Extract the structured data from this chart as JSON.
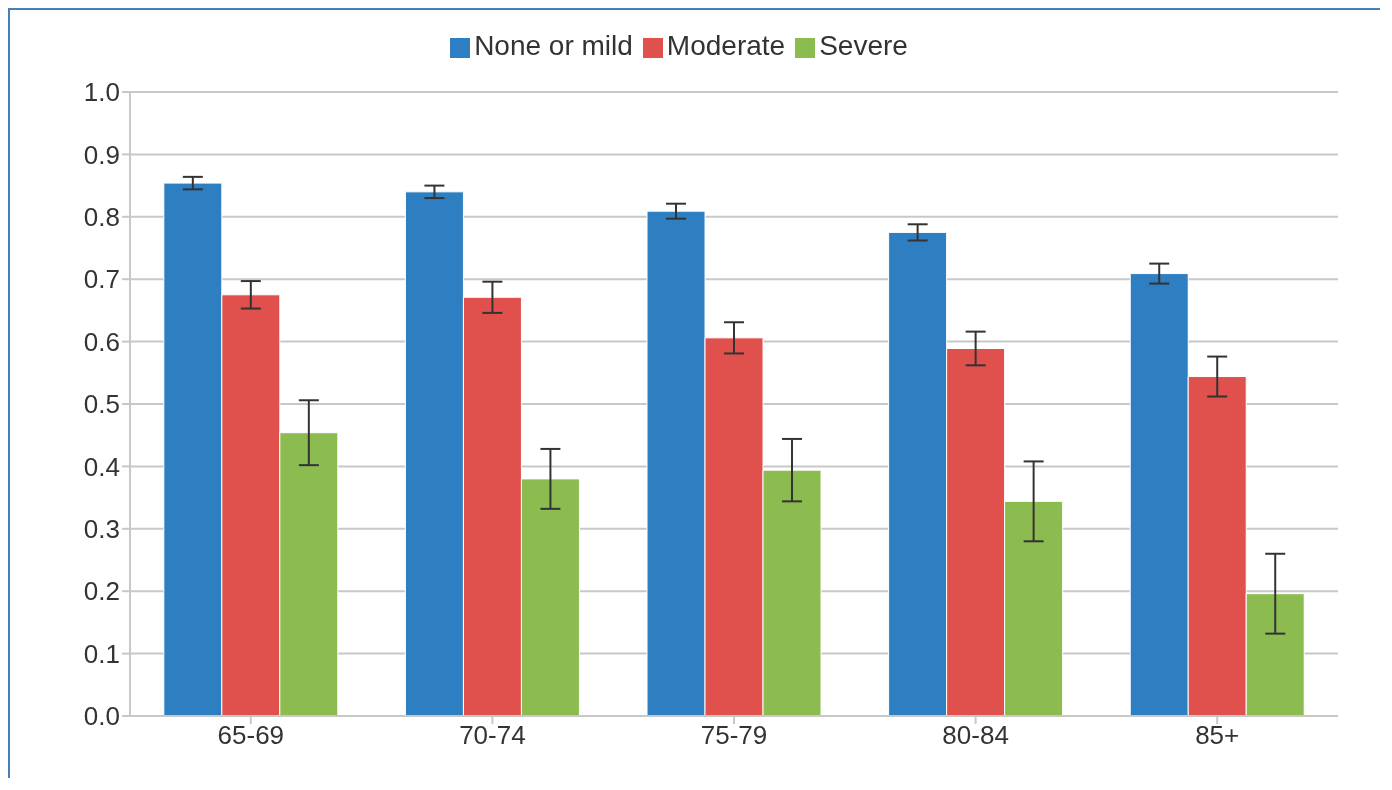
{
  "chart_data": {
    "type": "bar",
    "categories": [
      "65-69",
      "70-74",
      "75-79",
      "80-84",
      "85+"
    ],
    "series": [
      {
        "name": "None or mild",
        "color": "#2e7fc1",
        "values": [
          0.854,
          0.84,
          0.809,
          0.775,
          0.709
        ],
        "errors": [
          0.01,
          0.01,
          0.012,
          0.013,
          0.016
        ]
      },
      {
        "name": "Moderate",
        "color": "#e0504d",
        "values": [
          0.675,
          0.671,
          0.606,
          0.589,
          0.544
        ],
        "errors": [
          0.022,
          0.025,
          0.025,
          0.027,
          0.032
        ]
      },
      {
        "name": "Severe",
        "color": "#8cbb4f",
        "values": [
          0.454,
          0.38,
          0.394,
          0.344,
          0.196
        ],
        "errors": [
          0.052,
          0.048,
          0.05,
          0.064,
          0.064
        ]
      }
    ],
    "ylim": [
      0,
      1
    ],
    "yticks": [
      {
        "value": 0,
        "label": "0.0"
      },
      {
        "value": 0.1,
        "label": "0.1"
      },
      {
        "value": 0.2,
        "label": "0.2"
      },
      {
        "value": 0.3,
        "label": "0.3"
      },
      {
        "value": 0.4,
        "label": "0.4"
      },
      {
        "value": 0.5,
        "label": "0.5"
      },
      {
        "value": 0.6,
        "label": "0.6"
      },
      {
        "value": 0.7,
        "label": "0.7"
      },
      {
        "value": 0.8,
        "label": "0.8"
      },
      {
        "value": 0.9,
        "label": "0.9"
      },
      {
        "value": 1,
        "label": "1.0"
      }
    ],
    "grid": "y",
    "legend": "top"
  }
}
